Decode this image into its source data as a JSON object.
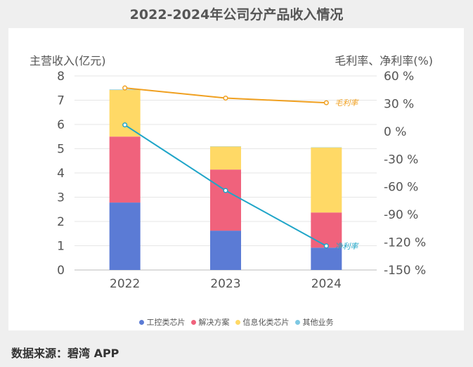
{
  "title": "2022-2024年公司分产品收入情况",
  "source": "数据来源：碧湾 APP",
  "chart_data": {
    "type": "bar+line",
    "categories": [
      "2022",
      "2023",
      "2024"
    ],
    "ylabel_left": "主营收入(亿元)",
    "ylabel_right": "毛利率、净利率(%)",
    "ylim_left": [
      0,
      8
    ],
    "yticks_left": [
      "0",
      "1",
      "2",
      "3",
      "4",
      "5",
      "6",
      "7",
      "8"
    ],
    "ylim_right": [
      -150,
      60
    ],
    "yticks_right": [
      "60 %",
      "30 %",
      "0 %",
      "-30 %",
      "-60 %",
      "-90 %",
      "-120 %",
      "-150 %"
    ],
    "bar_series": [
      {
        "name": "工控类芯片",
        "color": "#5b7bd5",
        "values": [
          2.78,
          1.62,
          0.92
        ]
      },
      {
        "name": "解决方案",
        "color": "#f0627c",
        "values": [
          2.72,
          2.52,
          1.45
        ]
      },
      {
        "name": "信息化类芯片",
        "color": "#ffd966",
        "values": [
          1.92,
          0.95,
          2.68
        ]
      },
      {
        "name": "其他业务",
        "color": "#7ec8e3",
        "values": [
          0.02,
          0.01,
          0.01
        ]
      }
    ],
    "line_series": [
      {
        "name": "毛利率",
        "color": "#f0a020",
        "values": [
          47,
          36,
          31
        ]
      },
      {
        "name": "净利率",
        "color": "#1fa5c8",
        "values": [
          7,
          -64,
          -124
        ]
      }
    ],
    "legend_position": "bottom",
    "grid": true
  }
}
